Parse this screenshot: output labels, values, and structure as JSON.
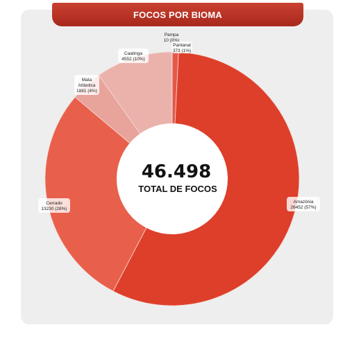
{
  "header": {
    "title": "FOCOS POR BIOMA"
  },
  "center": {
    "value": "46.498",
    "label": "TOTAL DE FOCOS"
  },
  "chart_data": {
    "type": "pie",
    "title": "FOCOS POR BIOMA",
    "total": 46498,
    "slices": [
      {
        "name": "Pantanal",
        "value": 373,
        "percent": "1%",
        "color": "#e4584a"
      },
      {
        "name": "Amazônia",
        "value": 26452,
        "percent": "57%",
        "color": "#de3f2a"
      },
      {
        "name": "Cerrado",
        "value": 13230,
        "percent": "28%",
        "color": "#e8604b"
      },
      {
        "name": "Mata Atlântica",
        "value": 1881,
        "percent": "4%",
        "color": "#e8a39b"
      },
      {
        "name": "Caatinga",
        "value": 4552,
        "percent": "10%",
        "color": "#ebb2ab"
      },
      {
        "name": "Pampa",
        "value": 10,
        "percent": "0%",
        "color": "#f0c7c2"
      }
    ],
    "labels": [
      {
        "line1": "Pampa",
        "line2": "10 (0%)"
      },
      {
        "line1": "Pantanal",
        "line2": "373 (1%)"
      },
      {
        "line1": "Caatinga",
        "line2": "4552 (10%)"
      },
      {
        "line1": "Mata",
        "line2": "Atlântica",
        "line3": "1881 (4%)"
      },
      {
        "line1": "Cerrado",
        "line2": "13230 (28%)"
      },
      {
        "line1": "Amazônia",
        "line2": "26452 (57%)"
      }
    ]
  }
}
